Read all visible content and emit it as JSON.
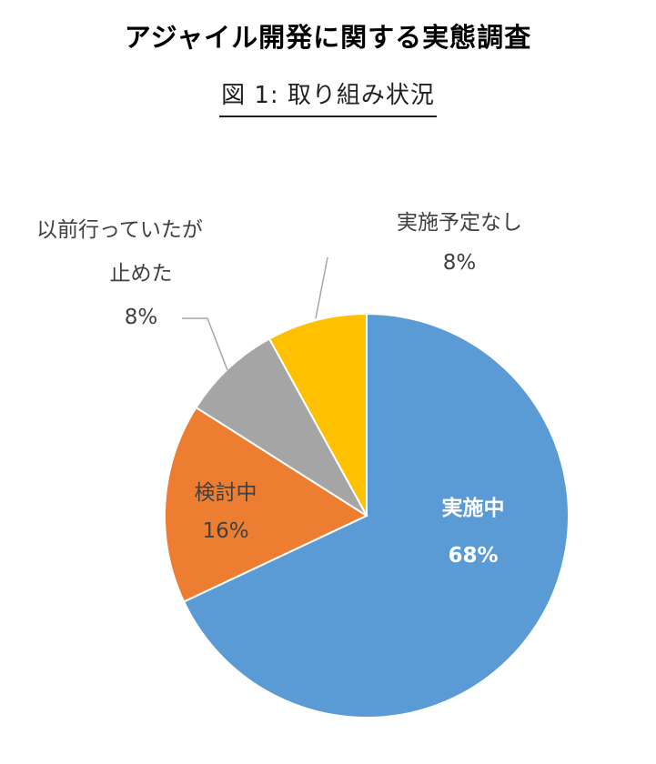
{
  "title": "アジャイル開発に関する実態調査",
  "subtitle": "図 1:  取り組み状況",
  "chart_data": {
    "type": "pie",
    "start": "top, clockwise",
    "slices": [
      {
        "category": "実施中",
        "value": 68,
        "pct_label": "68%",
        "color": "#5b9bd5",
        "label_color": "#ffffff"
      },
      {
        "category": "検討中",
        "value": 16,
        "pct_label": "16%",
        "color": "#ed7d31",
        "label_color": "#404040"
      },
      {
        "category": "以前行っていたが止めた",
        "value": 8,
        "pct_label": "8%",
        "color": "#a5a5a5",
        "label_color": "#404040"
      },
      {
        "category": "実施予定なし",
        "value": 8,
        "pct_label": "8%",
        "color": "#ffc000",
        "label_color": "#404040"
      }
    ],
    "label_lines": [
      "以前行っていたが",
      "止めた"
    ]
  }
}
